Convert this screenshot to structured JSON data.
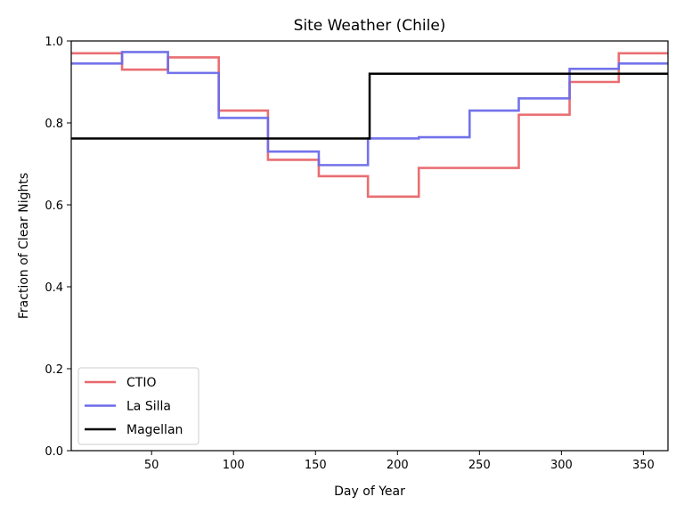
{
  "chart_data": {
    "type": "line",
    "title": "Site Weather (Chile)",
    "xlabel": "Day of Year",
    "ylabel": "Fraction of Clear Nights",
    "xlim": [
      1,
      365
    ],
    "ylim": [
      0.0,
      1.0
    ],
    "x_ticks": [
      50,
      100,
      150,
      200,
      250,
      300,
      350
    ],
    "y_ticks": [
      0.0,
      0.2,
      0.4,
      0.6,
      0.8,
      1.0
    ],
    "y_tick_labels": [
      "0.0",
      "0.2",
      "0.4",
      "0.6",
      "0.8",
      "1.0"
    ],
    "grid": false,
    "legend_position": "lower-left",
    "series": [
      {
        "name": "CTIO",
        "color": "#e8666a",
        "step": true,
        "x": [
          1,
          32,
          60,
          91,
          121,
          152,
          182,
          213,
          244,
          274,
          305,
          335,
          365
        ],
        "y": [
          0.97,
          0.93,
          0.96,
          0.83,
          0.71,
          0.67,
          0.62,
          0.69,
          0.69,
          0.82,
          0.9,
          0.97,
          0.97
        ]
      },
      {
        "name": "La Silla",
        "color": "#6b6bea",
        "step": true,
        "x": [
          1,
          32,
          60,
          91,
          121,
          152,
          182,
          213,
          244,
          274,
          305,
          335,
          365
        ],
        "y": [
          0.945,
          0.973,
          0.922,
          0.812,
          0.73,
          0.697,
          0.762,
          0.765,
          0.83,
          0.86,
          0.932,
          0.945,
          0.945
        ]
      },
      {
        "name": "Magellan",
        "color": "#000000",
        "step": true,
        "x": [
          1,
          183,
          365
        ],
        "y": [
          0.762,
          0.92,
          0.92
        ]
      }
    ]
  }
}
